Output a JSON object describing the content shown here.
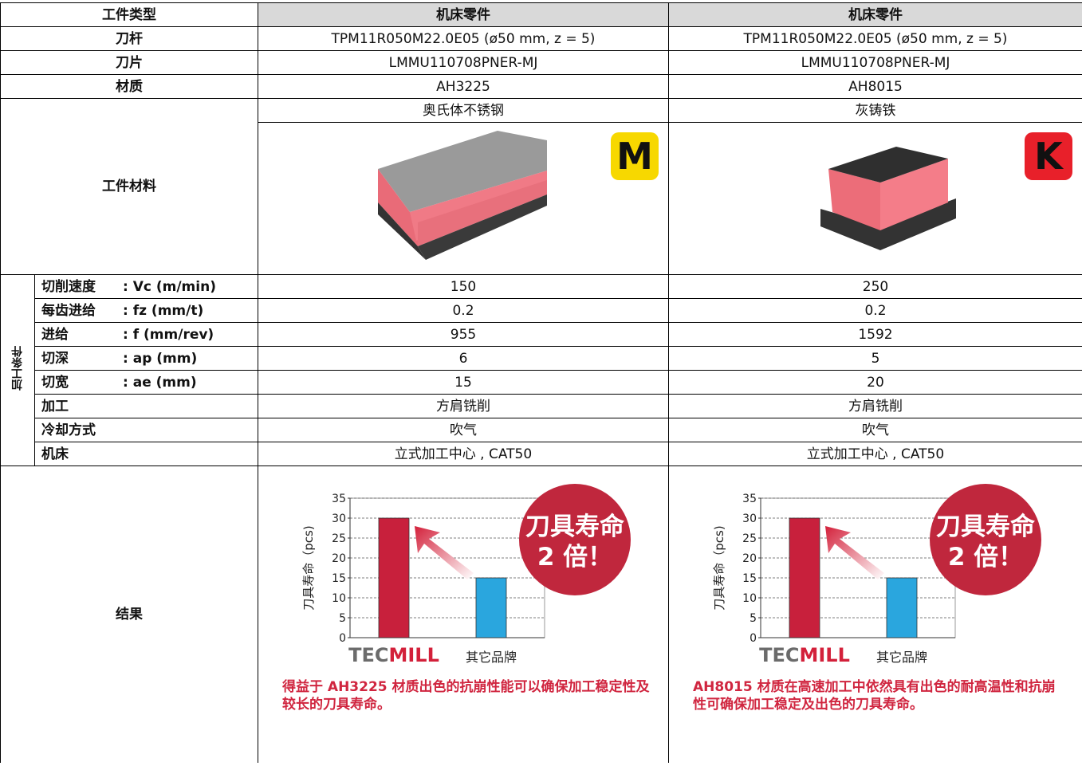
{
  "header": {
    "label": "工件类型",
    "columns": [
      "机床零件",
      "机床零件"
    ]
  },
  "spec_rows": [
    {
      "label": "刀杆",
      "values": [
        "TPM11R050M22.0E05 (ø50 mm, z = 5)",
        "TPM11R050M22.0E05 (ø50 mm, z = 5)"
      ]
    },
    {
      "label": "刀片",
      "values": [
        "LMMU110708PNER-MJ",
        "LMMU110708PNER-MJ"
      ]
    },
    {
      "label": "材质",
      "values": [
        "AH3225",
        "AH8015"
      ]
    }
  ],
  "workpiece": {
    "label": "工件材料",
    "materials": [
      "奥氏体不锈钢",
      "灰铸铁"
    ],
    "badges": [
      "M",
      "K"
    ]
  },
  "conditions": {
    "group_label": "加工条件",
    "rows": [
      {
        "name": "切削速度",
        "param": ": Vc (m/min)",
        "values": [
          150,
          250
        ]
      },
      {
        "name": "每齿进给",
        "param": ": fz (mm/t)",
        "values": [
          0.2,
          0.2
        ]
      },
      {
        "name": "进给",
        "param": ": f (mm/rev)",
        "values": [
          955,
          1592
        ]
      },
      {
        "name": "切深",
        "param": ": ap (mm)",
        "values": [
          6,
          5
        ]
      },
      {
        "name": "切宽",
        "param": ": ae (mm)",
        "values": [
          15,
          20
        ]
      },
      {
        "name": "加工",
        "values": [
          "方肩铣削",
          "方肩铣削"
        ]
      },
      {
        "name": "冷却方式",
        "values": [
          "吹气",
          "吹气"
        ]
      },
      {
        "name": "机床",
        "values": [
          "立式加工中心 , CAT50",
          "立式加工中心 , CAT50"
        ]
      }
    ]
  },
  "results": {
    "label": "结果",
    "notes": [
      "得益于 AH3225 材质出色的抗崩性能可以确保加工稳定性及较长的刀具寿命。",
      "AH8015 材质在高速加工中依然具有出色的耐高温性和抗崩性可确保加工稳定及出色的刀具寿命。"
    ]
  },
  "chart_data": [
    {
      "type": "bar",
      "ylabel": "刀具寿命（pcs)",
      "categories": [
        "TECMILL",
        "其它品牌"
      ],
      "values": [
        30,
        15
      ],
      "colors": [
        "#c8203c",
        "#2aa6de"
      ],
      "ylim": [
        0,
        35
      ],
      "yticks": [
        0,
        5,
        10,
        15,
        20,
        25,
        30,
        35
      ],
      "grid": true,
      "callout": [
        "刀具寿命",
        "2 倍！"
      ]
    },
    {
      "type": "bar",
      "ylabel": "刀具寿命（pcs)",
      "categories": [
        "TECMILL",
        "其它品牌"
      ],
      "values": [
        30,
        15
      ],
      "colors": [
        "#c8203c",
        "#2aa6de"
      ],
      "ylim": [
        0,
        35
      ],
      "yticks": [
        0,
        5,
        10,
        15,
        20,
        25,
        30,
        35
      ],
      "grid": true,
      "callout": [
        "刀具寿命",
        "2 倍！"
      ]
    }
  ]
}
